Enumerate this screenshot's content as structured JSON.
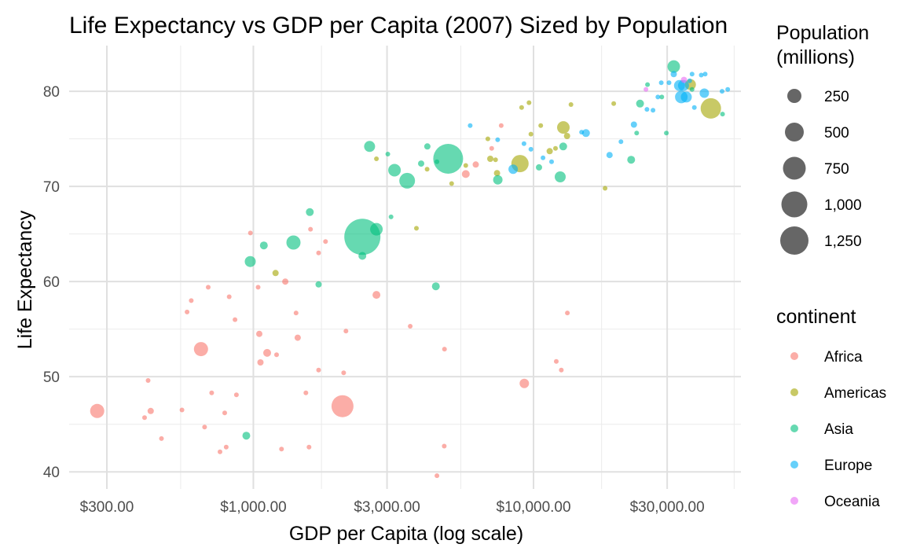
{
  "chart_data": {
    "type": "scatter",
    "title": "Life Expectancy vs GDP per Capita (2007) Sized by Population",
    "xlabel": "GDP per Capita (log scale)",
    "ylabel": "Life Expectancy",
    "x_scale": "log",
    "xlim": [
      220,
      55000
    ],
    "ylim": [
      38.2,
      84.8
    ],
    "grid": true,
    "x_ticks": [
      {
        "value": 300,
        "label": "$300.00"
      },
      {
        "value": 1000,
        "label": "$1,000.00"
      },
      {
        "value": 3000,
        "label": "$3,000.00"
      },
      {
        "value": 10000,
        "label": "$10,000.00"
      },
      {
        "value": 30000,
        "label": "$30,000.00"
      }
    ],
    "x_minor_ticks": [
      550,
      1750,
      5500,
      17500,
      52000
    ],
    "y_ticks": [
      40,
      50,
      60,
      70,
      80
    ],
    "y_minor_ticks": [
      45,
      55,
      65,
      75
    ],
    "size_legend": {
      "title": "Population\n(millions)",
      "entries": [
        {
          "value": 250,
          "label": "250"
        },
        {
          "value": 500,
          "label": "500"
        },
        {
          "value": 750,
          "label": "750"
        },
        {
          "value": 1000,
          "label": "1,000"
        },
        {
          "value": 1250,
          "label": "1,250"
        }
      ]
    },
    "color_legend": {
      "title": "continent",
      "entries": [
        {
          "name": "Africa",
          "color": "#F8766D"
        },
        {
          "name": "Americas",
          "color": "#A3A500"
        },
        {
          "name": "Asia",
          "color": "#00BF7D"
        },
        {
          "name": "Europe",
          "color": "#00B0F6"
        },
        {
          "name": "Oceania",
          "color": "#E76BF3"
        }
      ]
    },
    "series": [
      {
        "name": "Africa",
        "color": "#F8766D",
        "points": [
          [
            277,
            46.4,
            9
          ],
          [
            430,
            46.4,
            4
          ],
          [
            421,
            49.6,
            3
          ],
          [
            409,
            45.7,
            3
          ],
          [
            470,
            43.5,
            3
          ],
          [
            556,
            46.5,
            3
          ],
          [
            580,
            56.8,
            3
          ],
          [
            600,
            58.0,
            3
          ],
          [
            650,
            52.9,
            9
          ],
          [
            670,
            44.7,
            3
          ],
          [
            690,
            59.4,
            3
          ],
          [
            710,
            48.3,
            3
          ],
          [
            760,
            42.1,
            3
          ],
          [
            800,
            42.6,
            3
          ],
          [
            790,
            46.2,
            3
          ],
          [
            820,
            58.4,
            3
          ],
          [
            860,
            56.0,
            3
          ],
          [
            870,
            48.1,
            3
          ],
          [
            976,
            65.1,
            3
          ],
          [
            1040,
            59.4,
            3
          ],
          [
            1050,
            54.5,
            4
          ],
          [
            1060,
            51.5,
            4
          ],
          [
            1120,
            52.5,
            5
          ],
          [
            1210,
            52.3,
            3
          ],
          [
            1260,
            42.4,
            3
          ],
          [
            1300,
            60.0,
            4
          ],
          [
            1420,
            56.7,
            3
          ],
          [
            1440,
            54.1,
            4
          ],
          [
            1540,
            48.3,
            3
          ],
          [
            1580,
            42.6,
            3
          ],
          [
            1600,
            65.5,
            3
          ],
          [
            1710,
            63.0,
            3
          ],
          [
            1710,
            50.7,
            3
          ],
          [
            1810,
            64.2,
            3
          ],
          [
            2080,
            46.9,
            14
          ],
          [
            2100,
            50.4,
            3
          ],
          [
            2140,
            54.8,
            3
          ],
          [
            2750,
            58.6,
            5
          ],
          [
            3630,
            55.3,
            3
          ],
          [
            4520,
            39.6,
            3
          ],
          [
            4800,
            42.7,
            3
          ],
          [
            4810,
            52.9,
            3
          ],
          [
            5730,
            71.3,
            5
          ],
          [
            6220,
            72.3,
            4
          ],
          [
            7090,
            74.0,
            3
          ],
          [
            7670,
            76.4,
            3
          ],
          [
            9270,
            49.3,
            6
          ],
          [
            12060,
            51.6,
            3
          ],
          [
            12570,
            50.7,
            3
          ],
          [
            13210,
            56.7,
            3
          ]
        ]
      },
      {
        "name": "Americas",
        "color": "#A3A500",
        "points": [
          [
            1200,
            60.9,
            4
          ],
          [
            2750,
            72.9,
            3
          ],
          [
            3820,
            65.6,
            3
          ],
          [
            4170,
            71.8,
            3
          ],
          [
            5100,
            70.3,
            3
          ],
          [
            5730,
            72.2,
            3
          ],
          [
            6870,
            75.0,
            3
          ],
          [
            7010,
            72.9,
            4
          ],
          [
            7320,
            72.8,
            3
          ],
          [
            7410,
            71.4,
            4
          ],
          [
            8950,
            72.4,
            11
          ],
          [
            9070,
            78.3,
            3
          ],
          [
            9640,
            78.8,
            3
          ],
          [
            9790,
            75.5,
            3
          ],
          [
            10610,
            76.4,
            3
          ],
          [
            11420,
            73.7,
            4
          ],
          [
            11980,
            74.0,
            3
          ],
          [
            12780,
            76.2,
            8
          ],
          [
            13170,
            75.3,
            4
          ],
          [
            13610,
            78.6,
            3
          ],
          [
            18010,
            69.8,
            3
          ],
          [
            19330,
            78.7,
            3
          ],
          [
            36320,
            80.7,
            7
          ],
          [
            42950,
            78.2,
            13
          ]
        ]
      },
      {
        "name": "Asia",
        "color": "#00BF7D",
        "points": [
          [
            944,
            43.8,
            5
          ],
          [
            975,
            62.1,
            7
          ],
          [
            1090,
            63.8,
            5
          ],
          [
            1390,
            64.1,
            9
          ],
          [
            1590,
            67.3,
            5
          ],
          [
            1710,
            59.7,
            4
          ],
          [
            2450,
            62.7,
            5
          ],
          [
            2600,
            74.2,
            7
          ],
          [
            2450,
            64.7,
            23
          ],
          [
            2750,
            65.5,
            8
          ],
          [
            3020,
            73.4,
            3
          ],
          [
            3100,
            66.8,
            3
          ],
          [
            3190,
            71.7,
            8
          ],
          [
            3540,
            70.6,
            10
          ],
          [
            3970,
            72.4,
            4
          ],
          [
            4180,
            74.2,
            4
          ],
          [
            4520,
            72.6,
            3
          ],
          [
            4480,
            59.5,
            5
          ],
          [
            4960,
            72.9,
            19
          ],
          [
            7460,
            70.7,
            6
          ],
          [
            10460,
            72.0,
            4
          ],
          [
            12450,
            71.0,
            7
          ],
          [
            12760,
            74.2,
            5
          ],
          [
            22320,
            72.8,
            5
          ],
          [
            23350,
            75.6,
            3
          ],
          [
            24000,
            78.7,
            5
          ],
          [
            25520,
            80.7,
            3
          ],
          [
            28700,
            79.4,
            3
          ],
          [
            29800,
            75.6,
            3
          ],
          [
            31660,
            82.6,
            8
          ],
          [
            36800,
            80.2,
            3
          ],
          [
            47300,
            77.6,
            3
          ]
        ]
      },
      {
        "name": "Europe",
        "color": "#00B0F6",
        "points": [
          [
            5940,
            76.4,
            3
          ],
          [
            7450,
            74.9,
            3
          ],
          [
            8460,
            71.8,
            6
          ],
          [
            9250,
            74.5,
            3
          ],
          [
            9790,
            73.9,
            3
          ],
          [
            10810,
            73.0,
            3
          ],
          [
            11600,
            72.6,
            3
          ],
          [
            14850,
            75.7,
            3
          ],
          [
            15390,
            75.6,
            5
          ],
          [
            18680,
            73.3,
            4
          ],
          [
            20510,
            74.7,
            3
          ],
          [
            22830,
            76.5,
            4
          ],
          [
            25400,
            78.1,
            3
          ],
          [
            26700,
            78.0,
            3
          ],
          [
            27800,
            79.4,
            3
          ],
          [
            28570,
            80.9,
            3
          ],
          [
            30470,
            80.9,
            3
          ],
          [
            31660,
            81.8,
            4
          ],
          [
            33200,
            80.6,
            7
          ],
          [
            33700,
            79.4,
            8
          ],
          [
            34300,
            80.6,
            7
          ],
          [
            35100,
            79.4,
            7
          ],
          [
            36100,
            81.1,
            3
          ],
          [
            36800,
            81.8,
            3
          ],
          [
            37500,
            78.3,
            3
          ],
          [
            39700,
            81.7,
            3
          ],
          [
            40700,
            79.8,
            6
          ],
          [
            41000,
            81.8,
            3
          ],
          [
            47100,
            80.0,
            3
          ],
          [
            49360,
            80.2,
            3
          ]
        ]
      },
      {
        "name": "Oceania",
        "color": "#E76BF3",
        "points": [
          [
            25190,
            80.2,
            3
          ],
          [
            34440,
            81.2,
            4
          ]
        ]
      }
    ]
  }
}
